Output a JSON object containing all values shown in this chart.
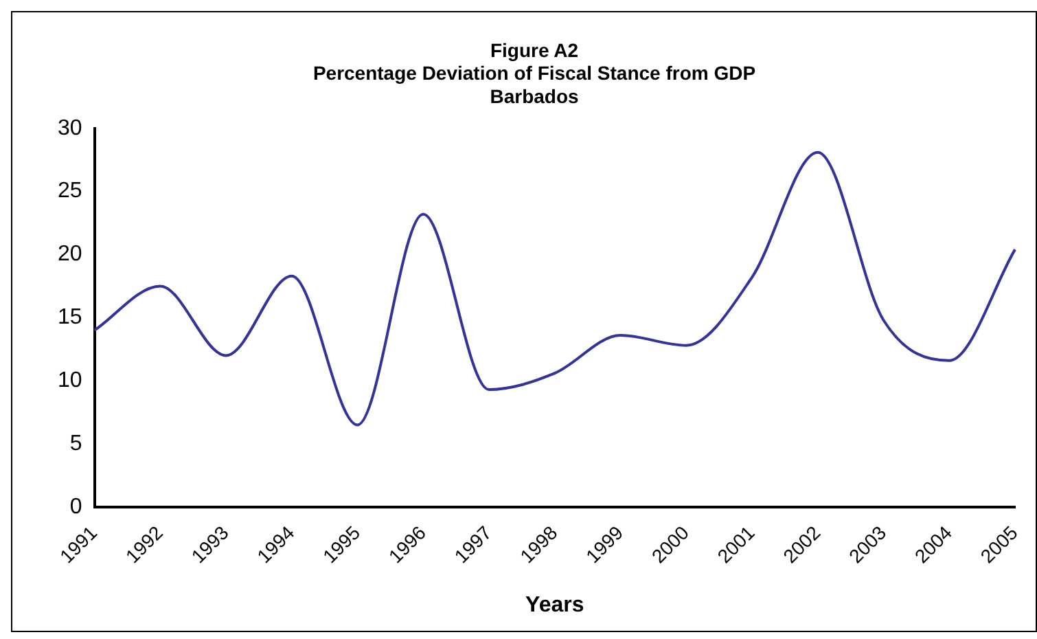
{
  "chart_data": {
    "type": "line",
    "title": "Figure A2",
    "subtitle": "Percentage Deviation of Fiscal Stance from GDP\nBarbados",
    "xlabel": "Years",
    "categories": [
      "1991",
      "1992",
      "1993",
      "1994",
      "1995",
      "1996",
      "1997",
      "1998",
      "1999",
      "2000",
      "2001",
      "2002",
      "2003",
      "2004",
      "2005"
    ],
    "series": [
      {
        "color": "#333399",
        "values": [
          14,
          17.5,
          12,
          18.3,
          6.5,
          23.2,
          9.3,
          10.6,
          13.6,
          12.8,
          18.2,
          28.1,
          14.8,
          11.6,
          20.4
        ]
      }
    ],
    "ylim": [
      0,
      30
    ],
    "yticks": [
      0,
      5,
      10,
      15,
      20,
      25,
      30
    ],
    "grid": false,
    "legend": false,
    "marker": "none"
  }
}
